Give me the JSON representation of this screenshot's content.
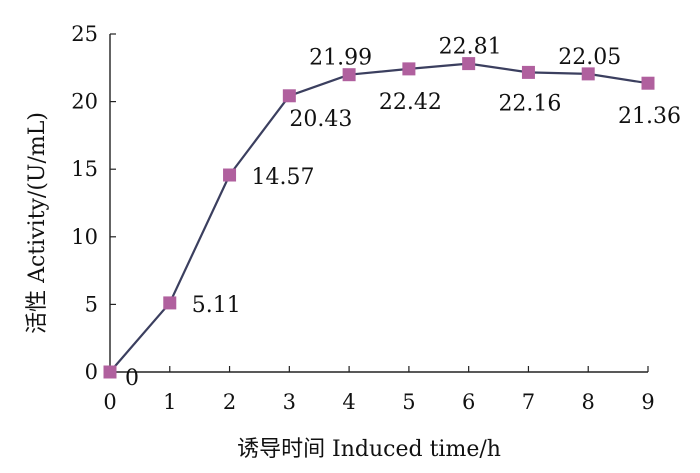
{
  "chart_data": {
    "type": "line",
    "xlabel": "诱导时间  Induced time/h",
    "ylabel": "活性  Activity/(U/mL)",
    "xlim": [
      0,
      9
    ],
    "ylim": [
      0,
      25
    ],
    "xticks": [
      "0",
      "1",
      "2",
      "3",
      "4",
      "5",
      "6",
      "7",
      "8",
      "9"
    ],
    "yticks": [
      "0",
      "5",
      "10",
      "15",
      "20",
      "25"
    ],
    "grid": false,
    "series": [
      {
        "x": [
          0,
          1,
          2,
          3,
          4,
          5,
          6,
          7,
          8,
          9
        ],
        "values": [
          0,
          5.11,
          14.57,
          20.43,
          21.99,
          22.42,
          22.81,
          22.16,
          22.05,
          21.36
        ],
        "labels": [
          "0",
          "5.11",
          "14.57",
          "20.43",
          "21.99",
          "22.42",
          "22.81",
          "22.16",
          "22.05",
          "21.36"
        ],
        "line_color": "#3b3f5f",
        "marker_color": "#b0609e",
        "marker": "square"
      }
    ]
  }
}
